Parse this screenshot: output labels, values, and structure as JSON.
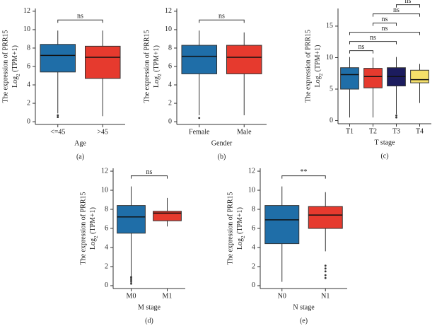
{
  "chart_data": [
    {
      "type": "box",
      "panel": "(a)",
      "xlabel": "Age",
      "ylabel": "The expression of PRR15",
      "ylabel_unit": [
        "Log",
        "2",
        " (TPM+1)"
      ],
      "ylim": [
        -0.3,
        12.3
      ],
      "yticks": [
        0,
        2,
        4,
        6,
        8,
        10,
        12
      ],
      "categories": [
        "<=45",
        ">45"
      ],
      "boxes": [
        {
          "color": "#1f6ea8",
          "min": 0.9,
          "q1": 5.4,
          "median": 7.2,
          "q3": 8.4,
          "max": 9.9,
          "outliers": [
            0.5,
            0.7
          ]
        },
        {
          "color": "#e63a2e",
          "min": 0.6,
          "q1": 4.7,
          "median": 7.0,
          "q3": 8.2,
          "max": 9.9,
          "outliers": []
        }
      ],
      "comparisons": [
        {
          "from": "<=45",
          "to": ">45",
          "label": "ns"
        }
      ]
    },
    {
      "type": "box",
      "panel": "(b)",
      "xlabel": "Gender",
      "ylabel": "The expression of PRR15",
      "ylabel_unit": [
        "Log",
        "2",
        " (TPM+1)"
      ],
      "ylim": [
        -0.3,
        12.3
      ],
      "yticks": [
        0,
        2,
        4,
        6,
        8,
        10,
        12
      ],
      "categories": [
        "Female",
        "Male"
      ],
      "boxes": [
        {
          "color": "#1f6ea8",
          "min": 0.7,
          "q1": 5.2,
          "median": 7.1,
          "q3": 8.3,
          "max": 9.9,
          "outliers": [
            0.4
          ]
        },
        {
          "color": "#e63a2e",
          "min": 0.7,
          "q1": 5.2,
          "median": 7.0,
          "q3": 8.3,
          "max": 9.7,
          "outliers": []
        }
      ],
      "comparisons": [
        {
          "from": "Female",
          "to": "Male",
          "label": "ns"
        }
      ]
    },
    {
      "type": "box",
      "panel": "(c)",
      "xlabel": "T stage",
      "ylabel": "The expression of PRR15",
      "ylabel_unit": [
        "Log",
        "2",
        " (TPM+1)"
      ],
      "ylim": [
        -0.5,
        17.8
      ],
      "yticks": [
        0,
        5,
        10,
        15
      ],
      "categories": [
        "T1",
        "T2",
        "T3",
        "T4"
      ],
      "boxes": [
        {
          "color": "#1f6ea8",
          "min": 0.5,
          "q1": 5.0,
          "median": 7.3,
          "q3": 8.4,
          "max": 10.1,
          "outliers": []
        },
        {
          "color": "#e63a2e",
          "min": 0.5,
          "q1": 5.2,
          "median": 7.0,
          "q3": 8.3,
          "max": 10.0,
          "outliers": []
        },
        {
          "color": "#1c1c5e",
          "min": 1.0,
          "q1": 5.5,
          "median": 7.0,
          "q3": 8.4,
          "max": 10.1,
          "outliers": [
            0.5,
            0.8
          ]
        },
        {
          "color": "#f5e06a",
          "min": 2.8,
          "q1": 6.0,
          "median": 6.5,
          "q3": 8.0,
          "max": 9.0,
          "outliers": []
        }
      ],
      "comparisons": [
        {
          "from": "T1",
          "to": "T2",
          "label": "ns"
        },
        {
          "from": "T1",
          "to": "T3",
          "label": "ns"
        },
        {
          "from": "T1",
          "to": "T4",
          "label": "ns"
        },
        {
          "from": "T2",
          "to": "T3",
          "label": "ns"
        },
        {
          "from": "T2",
          "to": "T4",
          "label": "ns"
        },
        {
          "from": "T3",
          "to": "T4",
          "label": "ns"
        }
      ]
    },
    {
      "type": "box",
      "panel": "(d)",
      "xlabel": "M stage",
      "ylabel": "The expression of PRR15",
      "ylabel_unit": [
        "Log",
        "2",
        " (TPM+1)"
      ],
      "ylim": [
        -0.3,
        12.3
      ],
      "yticks": [
        0,
        2,
        4,
        6,
        8,
        10,
        12
      ],
      "categories": [
        "M0",
        "M1"
      ],
      "boxes": [
        {
          "color": "#1f6ea8",
          "min": 1.0,
          "q1": 5.5,
          "median": 7.2,
          "q3": 8.4,
          "max": 10.4,
          "outliers": [
            0.2,
            0.4,
            0.6,
            0.8,
            0.9
          ]
        },
        {
          "color": "#e63a2e",
          "min": 6.2,
          "q1": 6.8,
          "median": 7.6,
          "q3": 7.8,
          "max": 9.2,
          "outliers": []
        }
      ],
      "comparisons": [
        {
          "from": "M0",
          "to": "M1",
          "label": "ns"
        }
      ]
    },
    {
      "type": "box",
      "panel": "(e)",
      "xlabel": "N stage",
      "ylabel": "The expression of PRR15",
      "ylabel_unit": [
        "Log",
        "2",
        " (TPM+1)"
      ],
      "ylim": [
        -0.3,
        12.3
      ],
      "yticks": [
        0,
        2,
        4,
        6,
        8,
        10,
        12
      ],
      "categories": [
        "N0",
        "N1"
      ],
      "boxes": [
        {
          "color": "#1f6ea8",
          "min": 0.4,
          "q1": 4.4,
          "median": 6.9,
          "q3": 8.4,
          "max": 10.4,
          "outliers": []
        },
        {
          "color": "#e63a2e",
          "min": 3.6,
          "q1": 6.0,
          "median": 7.4,
          "q3": 8.3,
          "max": 9.8,
          "outliers": [
            0.8,
            1.1,
            1.5,
            1.8,
            2.1
          ]
        }
      ],
      "comparisons": [
        {
          "from": "N0",
          "to": "N1",
          "label": "**"
        }
      ]
    }
  ]
}
